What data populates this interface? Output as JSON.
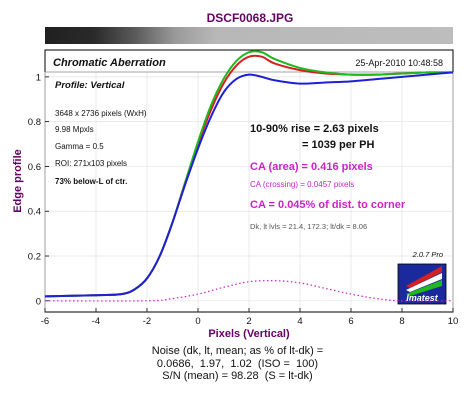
{
  "chart_data": {
    "type": "line",
    "title": "DSCF0068.JPG",
    "xlabel": "Pixels (Vertical)",
    "ylabel": "Edge profile",
    "xlim": [
      -6,
      10
    ],
    "ylim": [
      -0.05,
      1.12
    ],
    "x_ticks": [
      -6,
      -4,
      -2,
      0,
      2,
      4,
      6,
      8,
      10
    ],
    "y_ticks": [
      0,
      0.2,
      0.4,
      0.6,
      0.8,
      1
    ],
    "grid": true,
    "series": [
      {
        "color": "#1f1fd6",
        "x": [
          -6,
          -4,
          -3,
          -2.5,
          -2,
          -1.5,
          -1,
          -0.5,
          0,
          0.5,
          1,
          1.5,
          2,
          2.5,
          3,
          4,
          5,
          6,
          7,
          8,
          9,
          10
        ],
        "y": [
          0.02,
          0.025,
          0.03,
          0.05,
          0.1,
          0.2,
          0.35,
          0.52,
          0.68,
          0.82,
          0.93,
          0.99,
          1.01,
          1.0,
          0.985,
          0.97,
          0.975,
          0.98,
          0.99,
          1.0,
          1.01,
          1.02
        ]
      },
      {
        "color": "#d61f1f",
        "x": [
          -6,
          -4,
          -3,
          -2.5,
          -2,
          -1.5,
          -1,
          -0.5,
          0,
          0.5,
          1,
          1.5,
          2,
          2.5,
          3,
          4,
          5,
          6,
          7,
          8,
          9,
          10
        ],
        "y": [
          0.02,
          0.025,
          0.03,
          0.05,
          0.1,
          0.2,
          0.35,
          0.53,
          0.7,
          0.85,
          0.97,
          1.05,
          1.09,
          1.09,
          1.06,
          1.03,
          1.015,
          1.01,
          1.01,
          1.015,
          1.02,
          1.02
        ]
      },
      {
        "color": "#1fb81f",
        "x": [
          -6,
          -4,
          -3,
          -2.5,
          -2,
          -1.5,
          -1,
          -0.5,
          0,
          0.5,
          1,
          1.5,
          2,
          2.5,
          3,
          4,
          5,
          6,
          7,
          8,
          9,
          10
        ],
        "y": [
          0.02,
          0.025,
          0.03,
          0.05,
          0.1,
          0.2,
          0.35,
          0.53,
          0.71,
          0.87,
          0.99,
          1.07,
          1.11,
          1.11,
          1.08,
          1.04,
          1.02,
          1.01,
          1.01,
          1.015,
          1.02,
          1.02
        ]
      },
      {
        "color": "#cc22cc",
        "dashed": true,
        "x": [
          -6,
          -2,
          -1,
          0,
          1,
          2,
          3,
          4,
          5,
          6,
          7,
          8,
          10
        ],
        "y": [
          0.0,
          0.0,
          0.01,
          0.03,
          0.06,
          0.085,
          0.09,
          0.08,
          0.055,
          0.03,
          0.01,
          0.0,
          0.0
        ]
      }
    ],
    "chart_title": "Chromatic Aberration",
    "profile_label": "Profile: Vertical",
    "timestamp": "25-Apr-2010 10:48:58",
    "info_lines": [
      "3648 x 2736 pixels (WxH)",
      "9.98 Mpxls",
      "Gamma = 0.5",
      "ROI: 271x103 pixels"
    ],
    "below_note": "73% below-L of ctr.",
    "rise_line1": "10-90% rise = 2.63 pixels",
    "rise_line2": "= 1039 per PH",
    "ca_area": "CA (area) = 0.416 pixels",
    "ca_crossing": "CA (crossing) = 0.0457 pixels",
    "ca_corner": "CA = 0.045% of dist. to corner",
    "levels": "Dk, lt lvls = 21.4, 172.3;  lt/dk = 8.06",
    "version": "2.0.7  Pro",
    "logo_text": "Imatest",
    "colors": {
      "accent": "#660066",
      "magenta": "#cc22cc",
      "panel_bg": "#ffffff",
      "grid": "#e3e3e3"
    }
  },
  "footer": {
    "line1": "Noise (dk, lt, mean; as % of lt-dk) =",
    "line2": "0.0686,  1.97,  1.02  (ISO =  100)",
    "line3": "S/N (mean) = 98.28  (S = lt-dk)"
  }
}
